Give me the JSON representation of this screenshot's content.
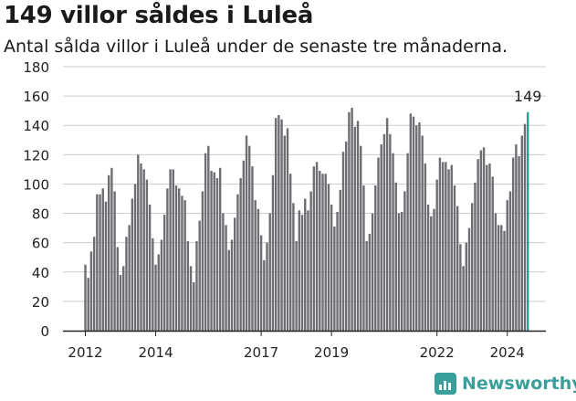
{
  "title": "149 villor såldes i Luleå",
  "subtitle": "Antal sålda villor i Luleå under de senaste tre månaderna.",
  "brand": "Newsworthy",
  "colors": {
    "bar": "#6e6d72",
    "highlight": "#2a9d9a",
    "grid": "#cccccc",
    "axis": "#222222",
    "brand": "#3a9e9b"
  },
  "chart_data": {
    "type": "bar",
    "title": "149 villor såldes i Luleå",
    "subtitle": "Antal sålda villor i Luleå under de senaste tre månaderna.",
    "xlabel": "",
    "ylabel": "",
    "ylim": [
      0,
      180
    ],
    "yticks": [
      "0",
      "20",
      "40",
      "60",
      "80",
      "100",
      "120",
      "140",
      "160",
      "180"
    ],
    "xticks": [
      {
        "label": "2012",
        "index": 0
      },
      {
        "label": "2014",
        "index": 24
      },
      {
        "label": "2017",
        "index": 60
      },
      {
        "label": "2019",
        "index": 84
      },
      {
        "label": "2022",
        "index": 120
      },
      {
        "label": "2024",
        "index": 144
      }
    ],
    "grid": true,
    "highlight_label": "149",
    "values": [
      45,
      36,
      54,
      64,
      93,
      93,
      97,
      88,
      106,
      111,
      95,
      57,
      38,
      44,
      64,
      72,
      90,
      100,
      120,
      114,
      110,
      103,
      86,
      63,
      45,
      52,
      62,
      79,
      97,
      110,
      110,
      99,
      97,
      92,
      89,
      61,
      44,
      33,
      61,
      75,
      95,
      121,
      126,
      109,
      108,
      104,
      111,
      80,
      72,
      55,
      62,
      77,
      93,
      104,
      116,
      133,
      126,
      112,
      89,
      83,
      65,
      48,
      60,
      80,
      106,
      145,
      147,
      144,
      133,
      138,
      107,
      87,
      61,
      82,
      79,
      90,
      82,
      95,
      112,
      115,
      109,
      107,
      107,
      100,
      86,
      71,
      81,
      96,
      122,
      129,
      149,
      152,
      139,
      143,
      126,
      99,
      61,
      66,
      80,
      99,
      118,
      127,
      134,
      145,
      134,
      121,
      101,
      80,
      81,
      95,
      121,
      148,
      146,
      140,
      142,
      133,
      114,
      86,
      78,
      83,
      103,
      118,
      115,
      115,
      110,
      113,
      99,
      85,
      59,
      44,
      60,
      70,
      87,
      101,
      117,
      123,
      125,
      113,
      114,
      105,
      80,
      72,
      72,
      68,
      89,
      95,
      118,
      127,
      119,
      133,
      141,
      149
    ]
  }
}
